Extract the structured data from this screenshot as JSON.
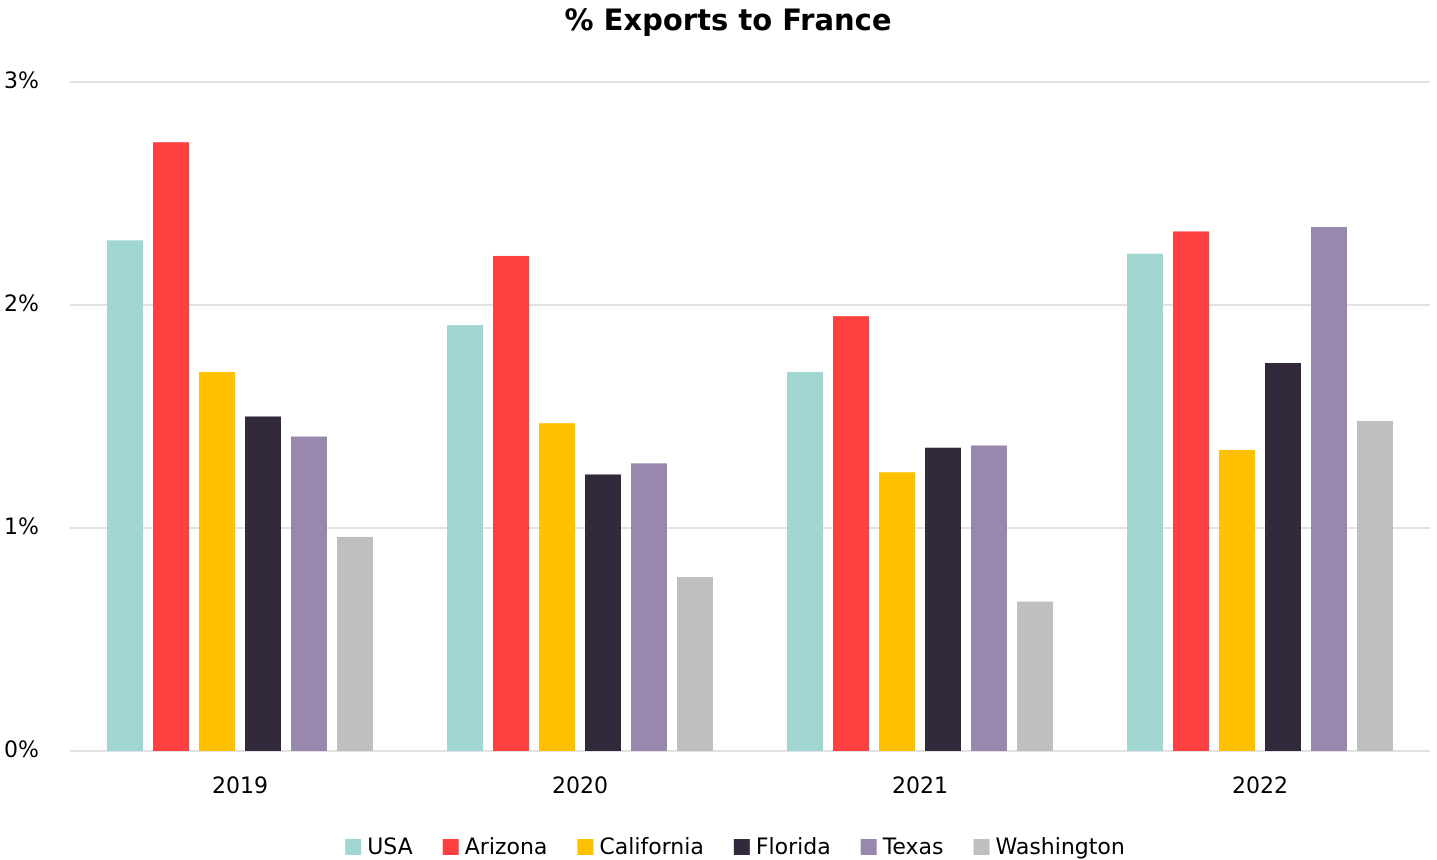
{
  "chart_data": {
    "type": "bar",
    "title": "% Exports to France",
    "categories": [
      "2019",
      "2020",
      "2021",
      "2022"
    ],
    "series": [
      {
        "name": "USA",
        "color": "#a2d6d2",
        "values": [
          2.29,
          1.91,
          1.7,
          2.23
        ]
      },
      {
        "name": "Arizona",
        "color": "#ff4040",
        "values": [
          2.73,
          2.22,
          1.95,
          2.33
        ]
      },
      {
        "name": "California",
        "color": "#ffc000",
        "values": [
          1.7,
          1.47,
          1.25,
          1.35
        ]
      },
      {
        "name": "Florida",
        "color": "#322a3c",
        "values": [
          1.5,
          1.24,
          1.36,
          1.74
        ]
      },
      {
        "name": "Texas",
        "color": "#9988ad",
        "values": [
          1.41,
          1.29,
          1.37,
          2.35
        ]
      },
      {
        "name": "Washington",
        "color": "#bfbfbf",
        "values": [
          0.96,
          0.78,
          0.67,
          1.48
        ]
      }
    ],
    "ylim": [
      0,
      3
    ],
    "yticks": [
      {
        "value": 0,
        "label": "0%"
      },
      {
        "value": 1,
        "label": "1%"
      },
      {
        "value": 2,
        "label": "2%"
      },
      {
        "value": 3,
        "label": "3%"
      }
    ],
    "grid": true,
    "legend": "bottom"
  }
}
